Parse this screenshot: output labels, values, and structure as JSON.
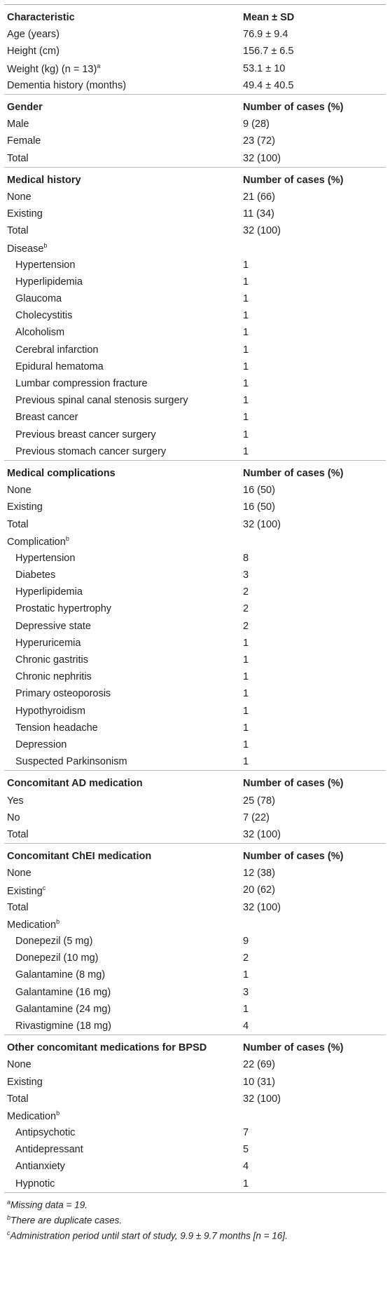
{
  "table": {
    "sections": [
      {
        "header": [
          "Characteristic",
          "Mean ± SD"
        ],
        "rows": [
          {
            "label": "Age (years)",
            "value": "76.9 ± 9.4"
          },
          {
            "label": "Height (cm)",
            "value": "156.7 ± 6.5"
          },
          {
            "label": "Weight (kg) (n = 13)",
            "sup": "a",
            "value": "53.1 ± 10"
          },
          {
            "label": "Dementia history (months)",
            "value": "49.4 ± 40.5"
          }
        ]
      },
      {
        "header": [
          "Gender",
          "Number of cases (%)"
        ],
        "rows": [
          {
            "label": "Male",
            "value": "9 (28)"
          },
          {
            "label": "Female",
            "value": "23 (72)"
          },
          {
            "label": "Total",
            "value": "32 (100)"
          }
        ]
      },
      {
        "header": [
          "Medical history",
          "Number of cases (%)"
        ],
        "rows": [
          {
            "label": "None",
            "value": "21 (66)"
          },
          {
            "label": "Existing",
            "value": "11 (34)"
          },
          {
            "label": "Total",
            "value": "32 (100)"
          },
          {
            "label": "Disease",
            "sup": "b",
            "items": [
              [
                "Hypertension",
                "1"
              ],
              [
                "Hyperlipidemia",
                "1"
              ],
              [
                "Glaucoma",
                "1"
              ],
              [
                "Cholecystitis",
                "1"
              ],
              [
                "Alcoholism",
                "1"
              ],
              [
                "Cerebral infarction",
                "1"
              ],
              [
                "Epidural hematoma",
                "1"
              ],
              [
                "Lumbar compression fracture",
                "1"
              ],
              [
                "Previous spinal canal stenosis surgery",
                "1"
              ],
              [
                "Breast cancer",
                "1"
              ],
              [
                "Previous breast cancer surgery",
                "1"
              ],
              [
                "Previous stomach cancer surgery",
                "1"
              ]
            ]
          }
        ]
      },
      {
        "header": [
          "Medical complications",
          "Number of cases (%)"
        ],
        "rows": [
          {
            "label": "None",
            "value": "16 (50)"
          },
          {
            "label": "Existing",
            "value": "16 (50)"
          },
          {
            "label": "Total",
            "value": "32 (100)"
          },
          {
            "label": "Complication",
            "sup": "b",
            "items": [
              [
                "Hypertension",
                "8"
              ],
              [
                "Diabetes",
                "3"
              ],
              [
                "Hyperlipidemia",
                "2"
              ],
              [
                "Prostatic hypertrophy",
                "2"
              ],
              [
                "Depressive state",
                "2"
              ],
              [
                "Hyperuricemia",
                "1"
              ],
              [
                "Chronic gastritis",
                "1"
              ],
              [
                "Chronic nephritis",
                "1"
              ],
              [
                "Primary osteoporosis",
                "1"
              ],
              [
                "Hypothyroidism",
                "1"
              ],
              [
                "Tension headache",
                "1"
              ],
              [
                "Depression",
                "1"
              ],
              [
                "Suspected Parkinsonism",
                "1"
              ]
            ]
          }
        ]
      },
      {
        "header": [
          "Concomitant AD medication",
          "Number of cases (%)"
        ],
        "rows": [
          {
            "label": "Yes",
            "value": "25 (78)"
          },
          {
            "label": "No",
            "value": "7 (22)"
          },
          {
            "label": "Total",
            "value": "32 (100)"
          }
        ]
      },
      {
        "header": [
          "Concomitant ChEI medication",
          "Number of cases (%)"
        ],
        "rows": [
          {
            "label": "None",
            "value": "12 (38)"
          },
          {
            "label": "Existing",
            "sup": "c",
            "value": "20 (62)"
          },
          {
            "label": "Total",
            "value": "32 (100)"
          },
          {
            "label": "Medication",
            "sup": "b",
            "items": [
              [
                "Donepezil (5 mg)",
                "9"
              ],
              [
                "Donepezil (10 mg)",
                "2"
              ],
              [
                "Galantamine (8 mg)",
                "1"
              ],
              [
                "Galantamine (16 mg)",
                "3"
              ],
              [
                "Galantamine (24 mg)",
                "1"
              ],
              [
                "Rivastigmine (18 mg)",
                "4"
              ]
            ]
          }
        ]
      },
      {
        "header": [
          "Other concomitant medications for BPSD",
          "Number of cases (%)"
        ],
        "rows": [
          {
            "label": "None",
            "value": "22 (69)"
          },
          {
            "label": "Existing",
            "value": "10 (31)"
          },
          {
            "label": "Total",
            "value": "32 (100)"
          },
          {
            "label": "Medication",
            "sup": "b",
            "items": [
              [
                "Antipsychotic",
                "7"
              ],
              [
                "Antidepressant",
                "5"
              ],
              [
                "Antianxiety",
                "4"
              ],
              [
                "Hypnotic",
                "1"
              ]
            ]
          }
        ]
      }
    ]
  },
  "footnotes": [
    {
      "mark": "a",
      "text": "Missing data = 19."
    },
    {
      "mark": "b",
      "text": "There are duplicate cases."
    },
    {
      "mark": "c",
      "text": "Administration period until start of study, 9.9 ± 9.7 months [n = 16]."
    }
  ]
}
